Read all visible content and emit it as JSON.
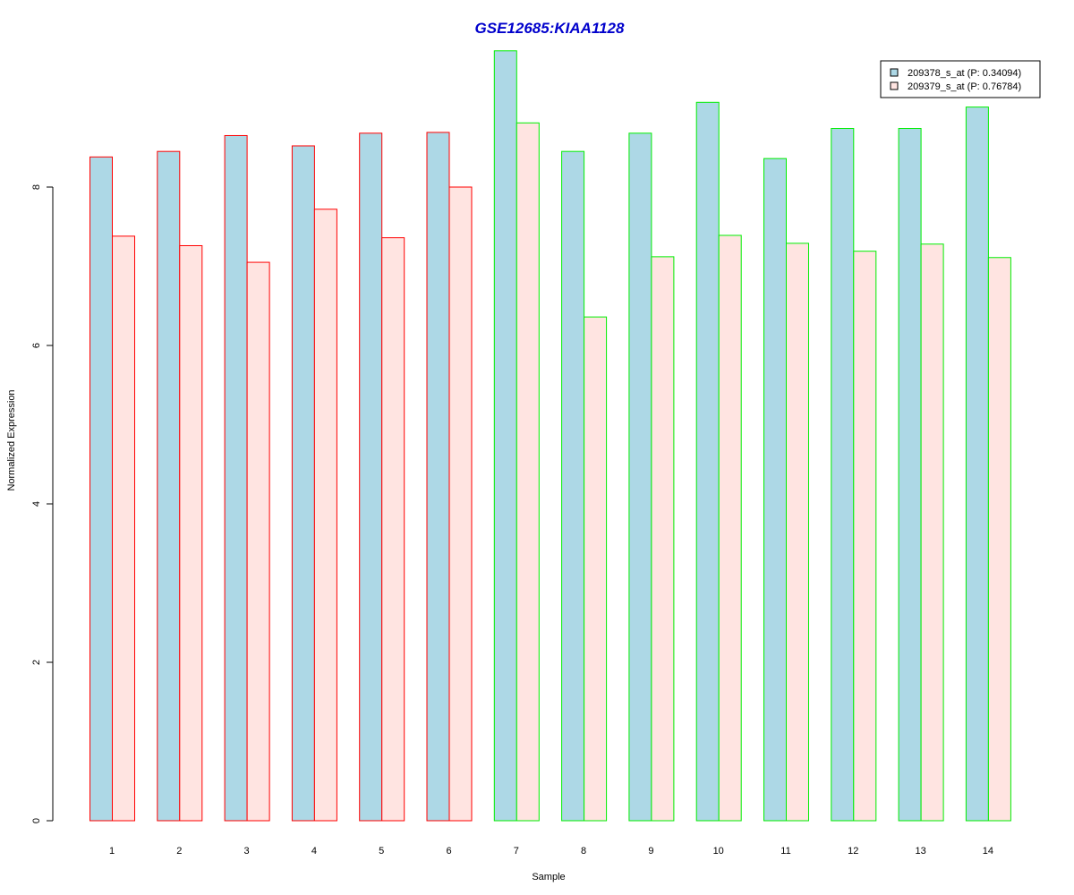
{
  "chart_data": {
    "type": "bar",
    "title": "GSE12685:KIAA1128",
    "xlabel": "Sample",
    "ylabel": "Normalized Expression",
    "categories": [
      "1",
      "2",
      "3",
      "4",
      "5",
      "6",
      "7",
      "8",
      "9",
      "10",
      "11",
      "12",
      "13",
      "14"
    ],
    "yticks": [
      "0",
      "2",
      "4",
      "6",
      "8"
    ],
    "ylim": [
      0,
      9.8
    ],
    "series": [
      {
        "name": "209378_s_at (P: 0.34094)",
        "fill": "#add8e6",
        "values": [
          8.38,
          8.45,
          8.65,
          8.52,
          8.68,
          8.69,
          9.72,
          8.45,
          8.68,
          9.07,
          8.36,
          8.74,
          8.74,
          9.01
        ]
      },
      {
        "name": "209379_s_at (P: 0.76784)",
        "fill": "#ffe4e1",
        "values": [
          7.38,
          7.26,
          7.05,
          7.72,
          7.36,
          8.0,
          8.81,
          6.36,
          7.12,
          7.39,
          7.29,
          7.19,
          7.28,
          7.11
        ]
      }
    ],
    "border_colors": [
      "#ff0000",
      "#ff0000",
      "#ff0000",
      "#ff0000",
      "#ff0000",
      "#ff0000",
      "#00ee00",
      "#00ee00",
      "#00ee00",
      "#00ee00",
      "#00ee00",
      "#00ee00",
      "#00ee00",
      "#00ee00"
    ],
    "grid": false,
    "legend_position": "top-right"
  }
}
